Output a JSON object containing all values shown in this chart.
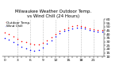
{
  "title": "Milwaukee Weather Outdoor Temp.",
  "subtitle": "vs Wind Chill (24 Hours)",
  "legend": [
    "Outdoor Temp.",
    "Wind Chill"
  ],
  "bg_color": "#ffffff",
  "plot_bg": "#ffffff",
  "grid_color": "#888888",
  "temp_color": "#ff0000",
  "wind_color": "#0000ff",
  "black_color": "#000000",
  "hours": [
    0,
    1,
    2,
    3,
    4,
    5,
    6,
    7,
    8,
    9,
    10,
    11,
    12,
    13,
    14,
    15,
    16,
    17,
    18,
    19,
    20,
    21,
    22,
    23
  ],
  "outdoor_temp": [
    42,
    40,
    37,
    34,
    31,
    29,
    27,
    26,
    26,
    28,
    32,
    36,
    40,
    44,
    47,
    49,
    51,
    52,
    51,
    50,
    48,
    47,
    46,
    46
  ],
  "wind_chill": [
    35,
    33,
    29,
    26,
    23,
    21,
    19,
    18,
    19,
    22,
    27,
    32,
    37,
    41,
    44,
    46,
    48,
    49,
    49,
    48,
    46,
    44,
    43,
    43
  ],
  "ylim_min": 10,
  "ylim_max": 60,
  "ytick_step": 5,
  "xticks": [
    0,
    1,
    2,
    3,
    4,
    5,
    6,
    7,
    8,
    9,
    10,
    11,
    12,
    13,
    14,
    15,
    16,
    17,
    18,
    19,
    20,
    21,
    22,
    23
  ],
  "xtick_labels_show": [
    0,
    3,
    6,
    9,
    12,
    15,
    18,
    21
  ],
  "title_fontsize": 4.0,
  "tick_fontsize": 3.2,
  "legend_fontsize": 3.0,
  "dot_size": 1.2,
  "grid_linewidth": 0.4
}
